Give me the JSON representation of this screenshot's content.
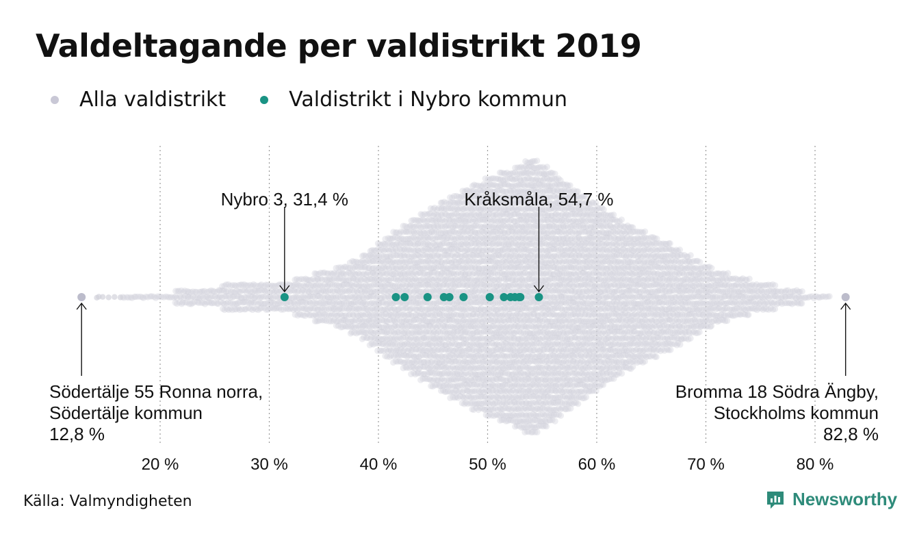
{
  "title": "Valdeltagande per valdistrikt 2019",
  "source": "Källa: Valmyndigheten",
  "logo_text": "Newsworthy",
  "colors": {
    "all": "#cfcfd9",
    "all_edge": "#bcbccb",
    "nybro": "#1a9384",
    "grid": "#999999",
    "logo": "#2e8b7a"
  },
  "chart_data": {
    "type": "scatter",
    "title": "Valdeltagande per valdistrikt 2019",
    "xlim": [
      12,
      84
    ],
    "x_ticks": [
      20,
      30,
      40,
      50,
      60,
      70,
      80
    ],
    "x_tick_labels": [
      "20 %",
      "30 %",
      "40 %",
      "50 %",
      "60 %",
      "70 %",
      "80 %"
    ],
    "grid": "vertical dotted",
    "legend_placement": "top-left",
    "series": [
      {
        "name": "Alla valdistrikt",
        "color": "#cfcfd9",
        "shape": "beeswarm",
        "min": 12.8,
        "max": 82.8,
        "peak": 54.0
      },
      {
        "name": "Valdistrikt i Nybro kommun",
        "color": "#1a9384",
        "values": [
          31.4,
          41.6,
          42.4,
          44.5,
          46.0,
          46.5,
          47.8,
          50.2,
          51.5,
          52.1,
          52.5,
          52.9,
          53.0,
          54.7
        ]
      }
    ],
    "annotations": [
      {
        "x": 31.4,
        "text": [
          "Nybro 3, 31,4 %"
        ],
        "position": "above"
      },
      {
        "x": 54.7,
        "text": [
          "Kråksmåla, 54,7 %"
        ],
        "position": "above"
      },
      {
        "x": 12.8,
        "text": [
          "Södertälje 55 Ronna norra,",
          "Södertälje kommun",
          "12,8 %"
        ],
        "position": "below",
        "align": "left"
      },
      {
        "x": 82.8,
        "text": [
          "Bromma 18 Södra Ängby,",
          "Stockholms kommun",
          "82,8 %"
        ],
        "position": "below",
        "align": "right"
      }
    ]
  }
}
